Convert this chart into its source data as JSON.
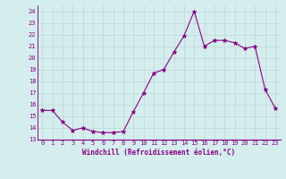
{
  "x": [
    0,
    1,
    2,
    3,
    4,
    5,
    6,
    7,
    8,
    9,
    10,
    11,
    12,
    13,
    14,
    15,
    16,
    17,
    18,
    19,
    20,
    21,
    22,
    23
  ],
  "y": [
    15.5,
    15.5,
    14.5,
    13.8,
    14.0,
    13.7,
    13.6,
    13.6,
    13.7,
    15.4,
    17.0,
    18.7,
    19.0,
    20.5,
    21.9,
    24.0,
    21.0,
    21.5,
    21.5,
    21.3,
    20.8,
    21.0,
    17.3,
    15.7
  ],
  "line_color": "#880088",
  "marker": "*",
  "marker_size": 3.5,
  "bg_color": "#d4eeed",
  "grid_color": "#b8d8d8",
  "xlabel": "Windchill (Refroidissement éolien,°C)",
  "xlabel_color": "#880088",
  "tick_color": "#880088",
  "yticks": [
    13,
    14,
    15,
    16,
    17,
    18,
    19,
    20,
    21,
    22,
    23,
    24
  ],
  "ylim": [
    13,
    24.5
  ],
  "xlim": [
    -0.5,
    23.5
  ]
}
